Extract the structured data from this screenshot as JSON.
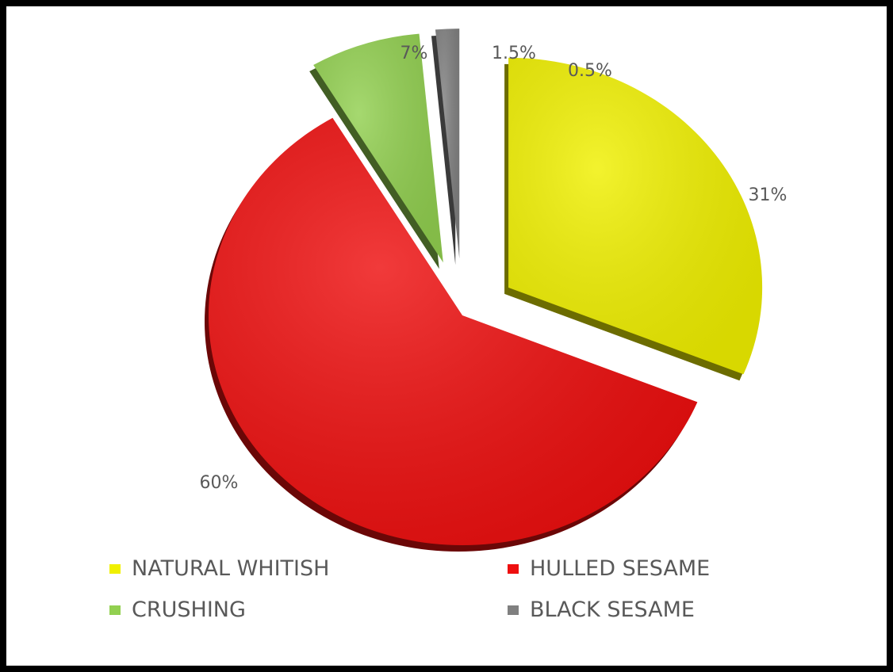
{
  "chart_data": {
    "type": "pie",
    "categories": [
      "NATURAL WHITISH",
      "HULLED SESAME",
      "CRUSHING",
      "BLACK SESAME"
    ],
    "values": [
      31,
      60,
      7,
      1.5
    ],
    "data_labels": [
      "31%",
      "60%",
      "7%",
      "1.5%"
    ],
    "extra_label": "0.5%",
    "colors": [
      "#f0f000",
      "#ee0f0f",
      "#92d050",
      "#808080"
    ],
    "legend_placement": "bottom"
  }
}
